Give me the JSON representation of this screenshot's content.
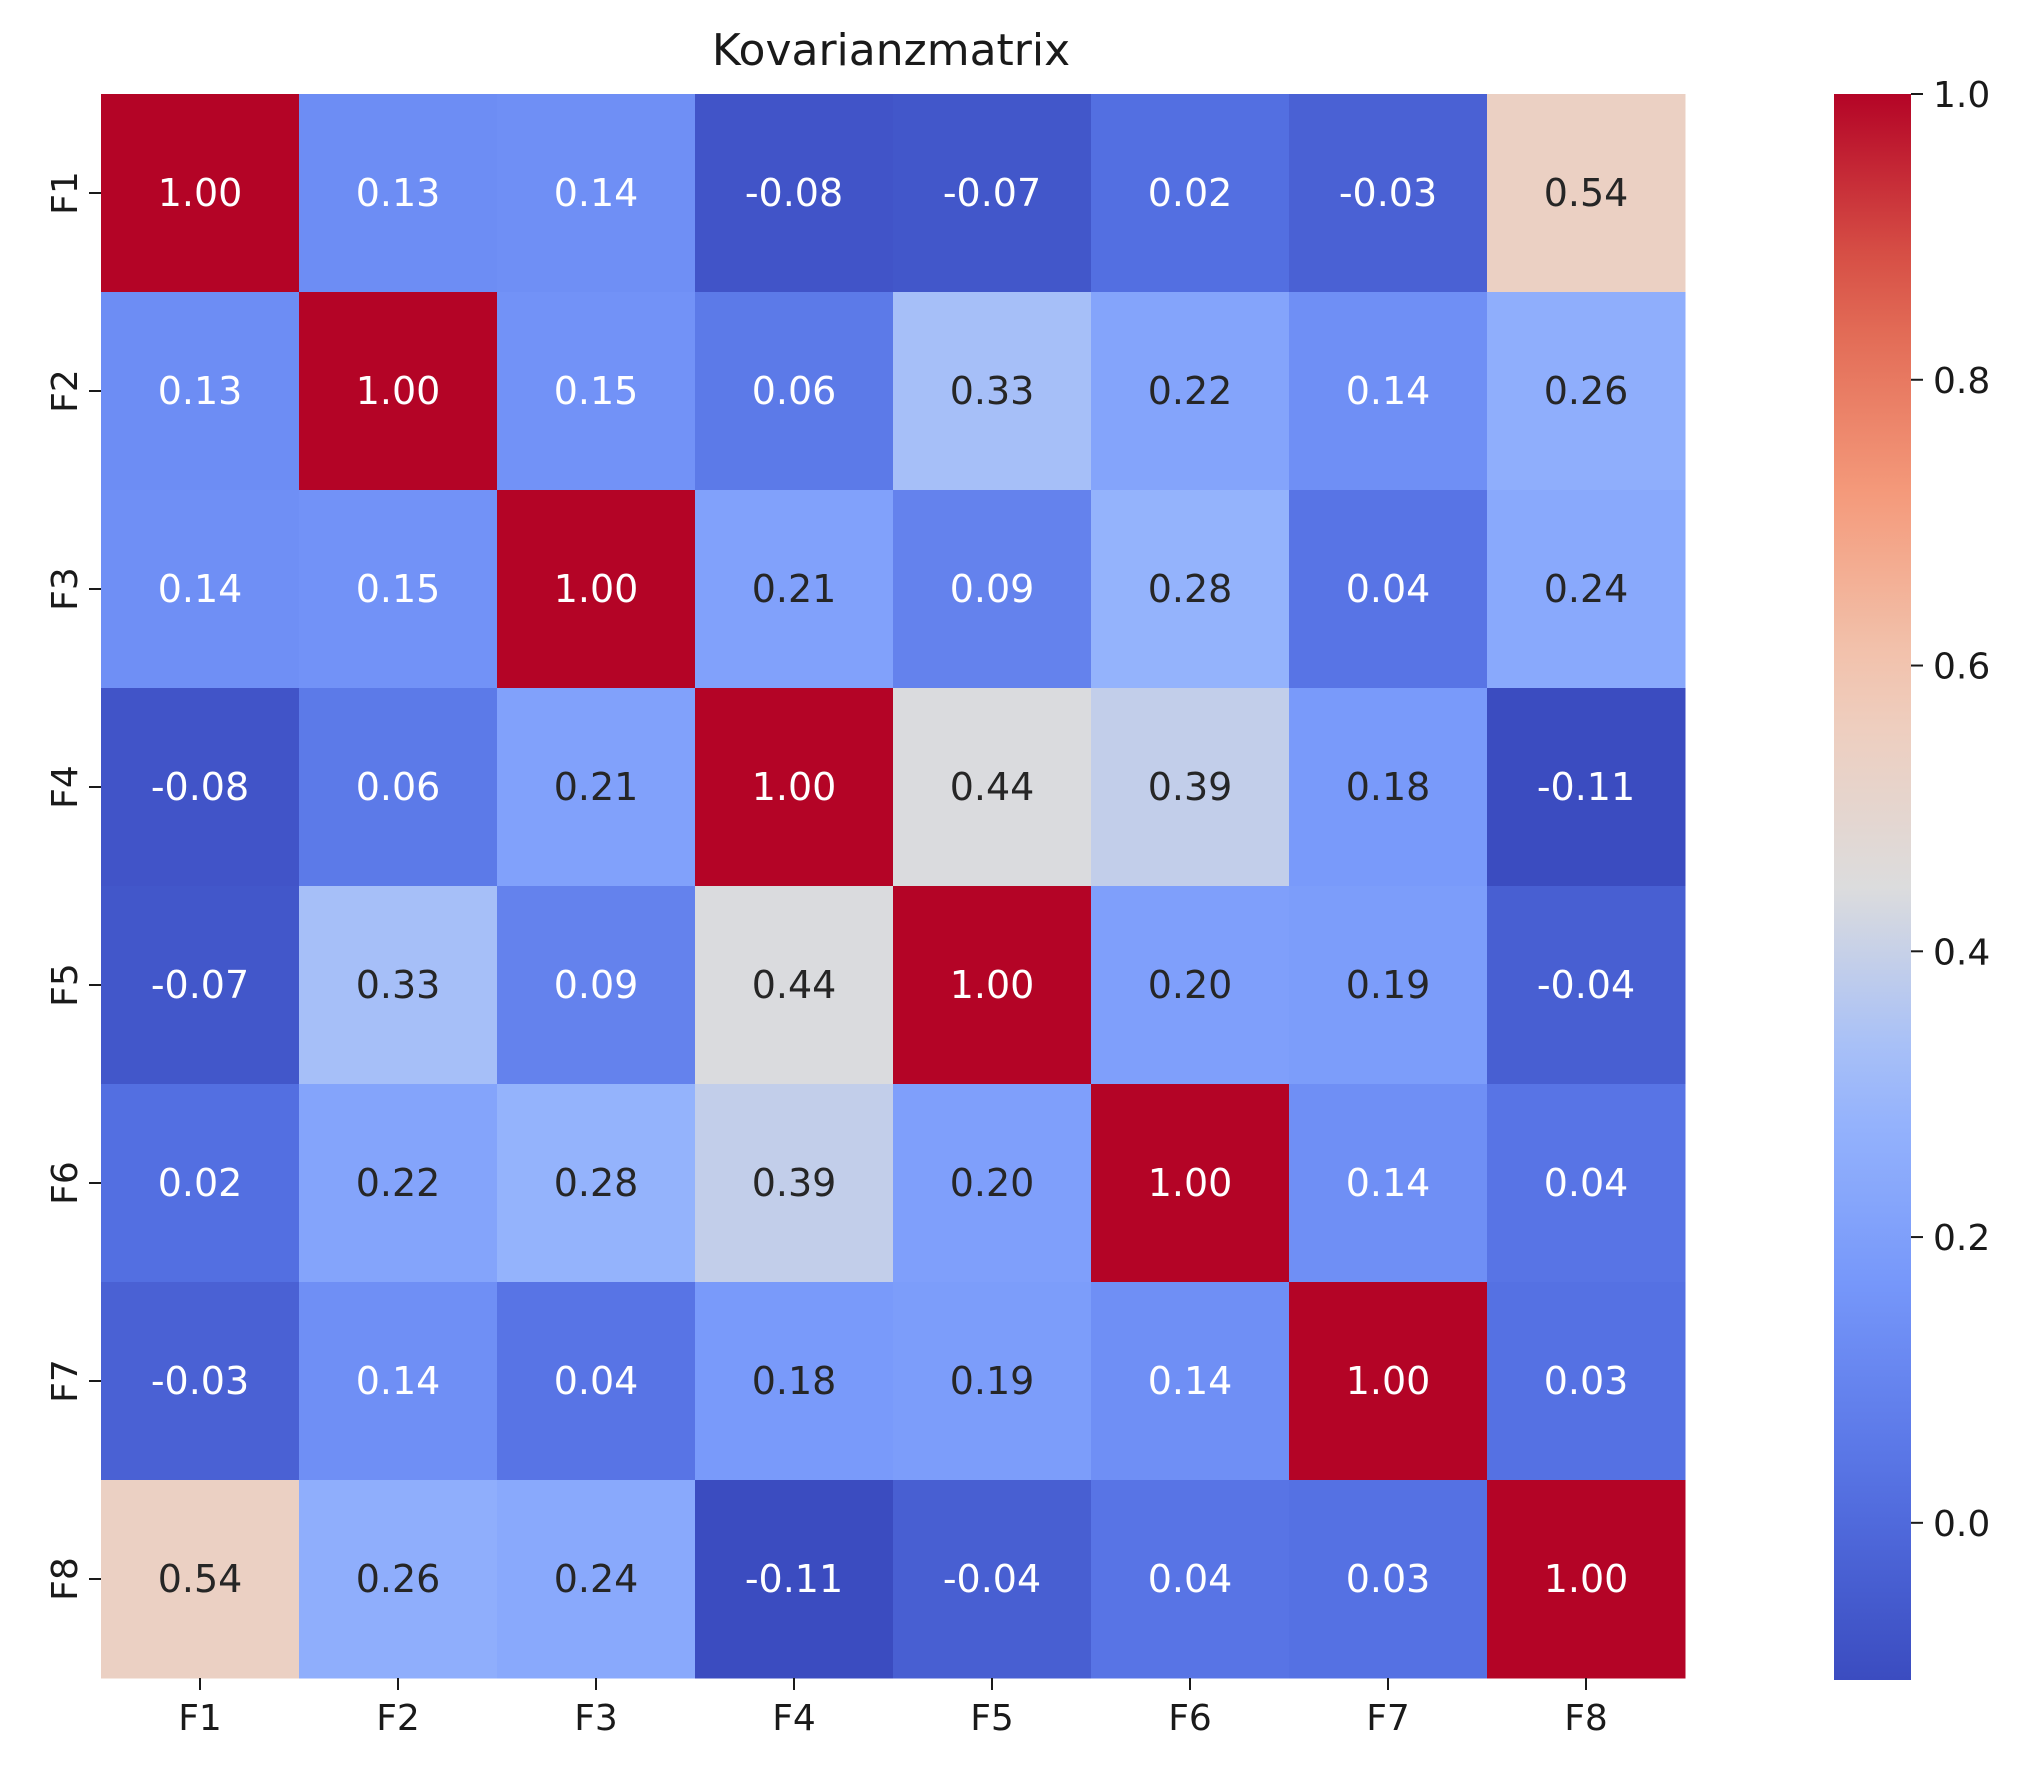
{
  "chart_data": {
    "type": "heatmap",
    "title": "Kovarianzmatrix",
    "xlabel": "",
    "ylabel": "",
    "x_categories": [
      "F1",
      "F2",
      "F3",
      "F4",
      "F5",
      "F6",
      "F7",
      "F8"
    ],
    "y_categories": [
      "F1",
      "F2",
      "F3",
      "F4",
      "F5",
      "F6",
      "F7",
      "F8"
    ],
    "values": [
      [
        1.0,
        0.13,
        0.14,
        -0.08,
        -0.07,
        0.02,
        -0.03,
        0.54
      ],
      [
        0.13,
        1.0,
        0.15,
        0.06,
        0.33,
        0.22,
        0.14,
        0.26
      ],
      [
        0.14,
        0.15,
        1.0,
        0.21,
        0.09,
        0.28,
        0.04,
        0.24
      ],
      [
        -0.08,
        0.06,
        0.21,
        1.0,
        0.44,
        0.39,
        0.18,
        -0.11
      ],
      [
        -0.07,
        0.33,
        0.09,
        0.44,
        1.0,
        0.2,
        0.19,
        -0.04
      ],
      [
        0.02,
        0.22,
        0.28,
        0.39,
        0.2,
        1.0,
        0.14,
        0.04
      ],
      [
        -0.03,
        0.14,
        0.04,
        0.18,
        0.19,
        0.14,
        1.0,
        0.03
      ],
      [
        0.54,
        0.26,
        0.24,
        -0.11,
        -0.04,
        0.04,
        0.03,
        1.0
      ]
    ],
    "value_format": "2 decimals",
    "colormap": "coolwarm",
    "color_range": [
      -0.11,
      1.0
    ],
    "colorbar": {
      "ticks": [
        0.0,
        0.2,
        0.4,
        0.6,
        0.8,
        1.0
      ],
      "tick_labels": [
        "0.0",
        "0.2",
        "0.4",
        "0.6",
        "0.8",
        "1.0"
      ],
      "placement": "right"
    },
    "grid": false
  }
}
